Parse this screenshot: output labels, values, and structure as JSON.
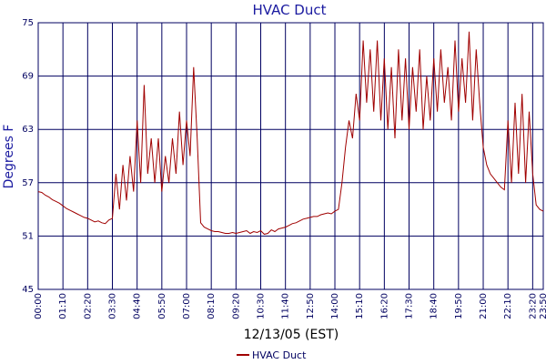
{
  "chart_data": {
    "type": "line",
    "title": "HVAC Duct",
    "y_label": "Degrees F",
    "x_label": "12/13/05 (EST)",
    "x": [
      "00:00",
      "00:10",
      "00:20",
      "00:30",
      "00:40",
      "00:50",
      "01:00",
      "01:10",
      "01:20",
      "01:30",
      "01:40",
      "01:50",
      "02:00",
      "02:10",
      "02:20",
      "02:30",
      "02:40",
      "02:50",
      "03:00",
      "03:10",
      "03:20",
      "03:30",
      "03:40",
      "03:50",
      "04:00",
      "04:10",
      "04:20",
      "04:30",
      "04:40",
      "04:50",
      "05:00",
      "05:10",
      "05:20",
      "05:30",
      "05:40",
      "05:50",
      "06:00",
      "06:10",
      "06:20",
      "06:30",
      "06:40",
      "06:50",
      "07:00",
      "07:10",
      "07:20",
      "07:30",
      "07:40",
      "07:50",
      "08:00",
      "08:10",
      "08:20",
      "08:30",
      "08:40",
      "08:50",
      "09:00",
      "09:10",
      "09:20",
      "09:30",
      "09:40",
      "09:50",
      "10:00",
      "10:10",
      "10:20",
      "10:30",
      "10:40",
      "10:50",
      "11:00",
      "11:10",
      "11:20",
      "11:30",
      "11:40",
      "11:50",
      "12:00",
      "12:10",
      "12:20",
      "12:30",
      "12:40",
      "12:50",
      "13:00",
      "13:10",
      "13:20",
      "13:30",
      "13:40",
      "13:50",
      "14:00",
      "14:10",
      "14:20",
      "14:30",
      "14:40",
      "14:50",
      "15:00",
      "15:10",
      "15:20",
      "15:30",
      "15:40",
      "15:50",
      "16:00",
      "16:10",
      "16:20",
      "16:30",
      "16:40",
      "16:50",
      "17:00",
      "17:10",
      "17:20",
      "17:30",
      "17:40",
      "17:50",
      "18:00",
      "18:10",
      "18:20",
      "18:30",
      "18:40",
      "18:50",
      "19:00",
      "19:10",
      "19:20",
      "19:30",
      "19:40",
      "19:50",
      "20:00",
      "20:10",
      "20:20",
      "20:30",
      "20:40",
      "20:50",
      "21:00",
      "21:10",
      "21:20",
      "21:30",
      "21:40",
      "21:50",
      "22:00",
      "22:10",
      "22:20",
      "22:30",
      "22:40",
      "22:50",
      "23:00",
      "23:10",
      "23:20",
      "23:30",
      "23:40",
      "23:50"
    ],
    "series": [
      {
        "name": "HVAC Duct",
        "color": "#a00000",
        "values": [
          56,
          55.9,
          55.6,
          55.4,
          55.1,
          54.9,
          54.7,
          54.4,
          54.1,
          53.9,
          53.7,
          53.5,
          53.3,
          53.1,
          53,
          52.8,
          52.6,
          52.7,
          52.5,
          52.4,
          52.8,
          53,
          58,
          54,
          59,
          55,
          60,
          56,
          64,
          57,
          68,
          58,
          62,
          57,
          62,
          56,
          60,
          57,
          62,
          58,
          65,
          59,
          64,
          60,
          70,
          62,
          52.5,
          52,
          51.8,
          51.6,
          51.5,
          51.5,
          51.4,
          51.3,
          51.3,
          51.4,
          51.3,
          51.4,
          51.5,
          51.6,
          51.3,
          51.5,
          51.4,
          51.6,
          51.2,
          51.3,
          51.7,
          51.5,
          51.8,
          51.9,
          52,
          52.2,
          52.4,
          52.5,
          52.7,
          52.9,
          53,
          53.1,
          53.2,
          53.2,
          53.4,
          53.5,
          53.6,
          53.5,
          53.8,
          54,
          57,
          61,
          64,
          62,
          67,
          64,
          73,
          66,
          72,
          65,
          73,
          64,
          71,
          63,
          70,
          62,
          72,
          64,
          71,
          63,
          70,
          65,
          72,
          63,
          69,
          64,
          71,
          65,
          72,
          66,
          70,
          64,
          73,
          65,
          71,
          66,
          74,
          64,
          72,
          66,
          61,
          59,
          58,
          57.5,
          57,
          56.5,
          56.2,
          64,
          57,
          66,
          58,
          67,
          57,
          65,
          58,
          54.5,
          54,
          53.8
        ]
      }
    ],
    "xlim": [
      "00:00",
      "23:50"
    ],
    "xticks": [
      "00:00",
      "01:10",
      "02:20",
      "03:30",
      "04:40",
      "05:50",
      "07:00",
      "08:10",
      "09:20",
      "10:30",
      "11:40",
      "12:50",
      "14:00",
      "15:10",
      "16:20",
      "17:30",
      "18:40",
      "19:50",
      "21:00",
      "22:10",
      "23:20",
      "23:50"
    ],
    "ylim": [
      45,
      75
    ],
    "yticks": [
      45,
      51,
      57,
      63,
      69,
      75
    ],
    "grid": true,
    "legend": "bottom"
  }
}
